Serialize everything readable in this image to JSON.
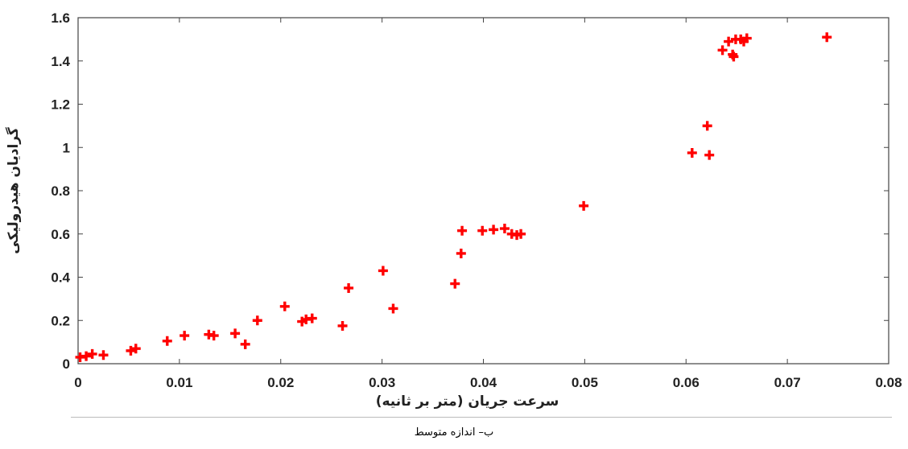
{
  "caption": "ب– اندازه متوسط",
  "chart_data": {
    "type": "scatter",
    "xlabel": "سرعت جریان (متر بر ثانیه)",
    "ylabel": "گرادیان هیدرولیکی",
    "xlim": [
      0,
      0.08
    ],
    "ylim": [
      0,
      1.6
    ],
    "xticks": [
      "0",
      "0.01",
      "0.02",
      "0.03",
      "0.04",
      "0.05",
      "0.06",
      "0.07",
      "0.08"
    ],
    "yticks": [
      "0",
      "0.2",
      "0.4",
      "0.6",
      "0.8",
      "1",
      "1.2",
      "1.4",
      "1.6"
    ],
    "grid": false,
    "marker": "plus",
    "marker_color": "#ff0000",
    "series": [
      {
        "points": [
          [
            0.0002,
            0.03
          ],
          [
            0.0008,
            0.035
          ],
          [
            0.0014,
            0.045
          ],
          [
            0.0025,
            0.04
          ],
          [
            0.0052,
            0.06
          ],
          [
            0.0057,
            0.07
          ],
          [
            0.0088,
            0.105
          ],
          [
            0.0105,
            0.13
          ],
          [
            0.0129,
            0.135
          ],
          [
            0.0134,
            0.13
          ],
          [
            0.0155,
            0.14
          ],
          [
            0.0165,
            0.09
          ],
          [
            0.0177,
            0.2
          ],
          [
            0.0204,
            0.265
          ],
          [
            0.0221,
            0.195
          ],
          [
            0.0225,
            0.205
          ],
          [
            0.0231,
            0.21
          ],
          [
            0.0261,
            0.175
          ],
          [
            0.0267,
            0.35
          ],
          [
            0.0301,
            0.43
          ],
          [
            0.0311,
            0.255
          ],
          [
            0.0372,
            0.37
          ],
          [
            0.0378,
            0.51
          ],
          [
            0.0379,
            0.615
          ],
          [
            0.0399,
            0.615
          ],
          [
            0.041,
            0.62
          ],
          [
            0.0421,
            0.625
          ],
          [
            0.0428,
            0.6
          ],
          [
            0.0433,
            0.595
          ],
          [
            0.0437,
            0.6
          ],
          [
            0.0499,
            0.73
          ],
          [
            0.0606,
            0.975
          ],
          [
            0.0621,
            1.1
          ],
          [
            0.0623,
            0.965
          ],
          [
            0.0636,
            1.45
          ],
          [
            0.0642,
            1.49
          ],
          [
            0.0646,
            1.43
          ],
          [
            0.0647,
            1.42
          ],
          [
            0.0649,
            1.5
          ],
          [
            0.0654,
            1.5
          ],
          [
            0.0657,
            1.49
          ],
          [
            0.066,
            1.505
          ],
          [
            0.0739,
            1.51
          ]
        ]
      }
    ]
  }
}
